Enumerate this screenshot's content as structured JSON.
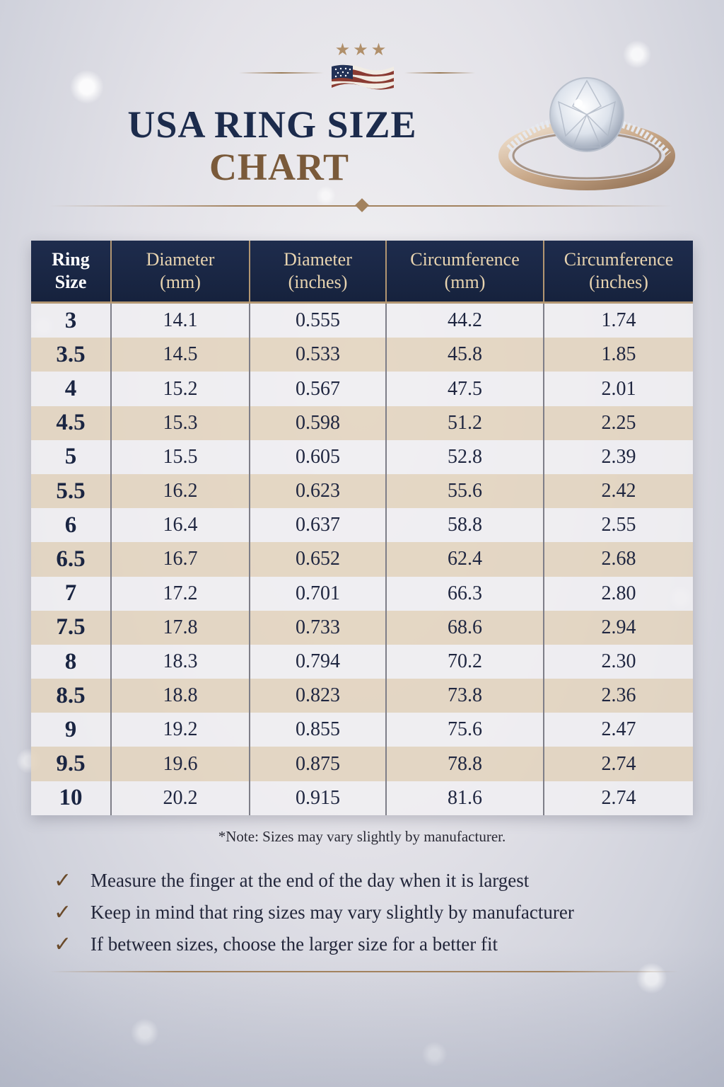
{
  "header": {
    "title_line1": "USA RING SIZE",
    "title_line2": "CHART"
  },
  "colors": {
    "navy": "#1c2b4c",
    "bronze": "#7a5a3a",
    "gold_text": "#e8d4b0",
    "row_light": "#f0eef2",
    "row_tan": "#e2d4be"
  },
  "icons": {
    "stars": "three-stars-icon",
    "flag": "us-flag-icon",
    "ring": "diamond-ring-image",
    "check": "checkmark-icon"
  },
  "table": {
    "headers": [
      {
        "line1": "Ring",
        "line2": "Size"
      },
      {
        "line1": "Diameter",
        "line2": "(mm)"
      },
      {
        "line1": "Diameter",
        "line2": "(inches)"
      },
      {
        "line1": "Circumference",
        "line2": "(mm)"
      },
      {
        "line1": "Circumference",
        "line2": "(inches)"
      }
    ],
    "rows": [
      [
        "3",
        "14.1",
        "0.555",
        "44.2",
        "1.74"
      ],
      [
        "3.5",
        "14.5",
        "0.533",
        "45.8",
        "1.85"
      ],
      [
        "4",
        "15.2",
        "0.567",
        "47.5",
        "2.01"
      ],
      [
        "4.5",
        "15.3",
        "0.598",
        "51.2",
        "2.25"
      ],
      [
        "5",
        "15.5",
        "0.605",
        "52.8",
        "2.39"
      ],
      [
        "5.5",
        "16.2",
        "0.623",
        "55.6",
        "2.42"
      ],
      [
        "6",
        "16.4",
        "0.637",
        "58.8",
        "2.55"
      ],
      [
        "6.5",
        "16.7",
        "0.652",
        "62.4",
        "2.68"
      ],
      [
        "7",
        "17.2",
        "0.701",
        "66.3",
        "2.80"
      ],
      [
        "7.5",
        "17.8",
        "0.733",
        "68.6",
        "2.94"
      ],
      [
        "8",
        "18.3",
        "0.794",
        "70.2",
        "2.30"
      ],
      [
        "8.5",
        "18.8",
        "0.823",
        "73.8",
        "2.36"
      ],
      [
        "9",
        "19.2",
        "0.855",
        "75.6",
        "2.47"
      ],
      [
        "9.5",
        "19.6",
        "0.875",
        "78.8",
        "2.74"
      ],
      [
        "10",
        "20.2",
        "0.915",
        "81.6",
        "2.74"
      ]
    ]
  },
  "note": "*Note: Sizes may vary slightly by manufacturer.",
  "tips": [
    "Measure the finger at the end of the day when it is largest",
    "Keep in mind that ring sizes may vary slightly by manufacturer",
    "If between sizes, choose the larger size for a better fit"
  ]
}
